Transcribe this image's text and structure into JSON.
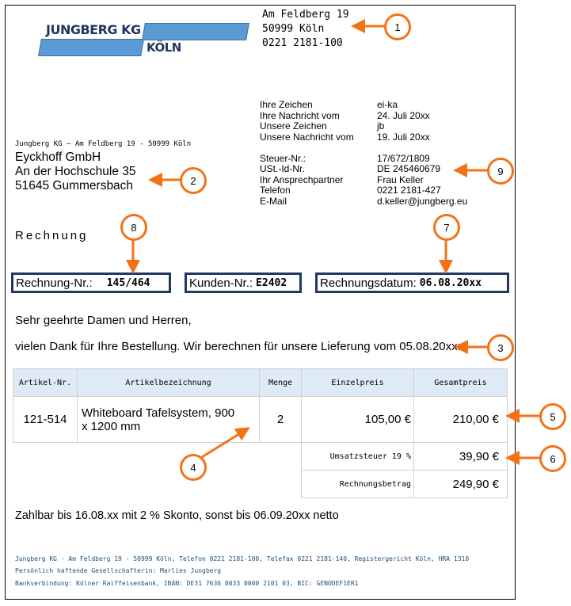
{
  "logo": {
    "company": "JUNGBERG KG",
    "city": "KÖLN",
    "color": "#5b9bd5"
  },
  "sender": {
    "street": "Am Feldberg 19",
    "city": "50999 Köln",
    "phone": "0221 2181-100"
  },
  "return_address": "Jungberg KG – Am Feldberg 19 - 50999 Köln",
  "recipient": {
    "name": "Eyckhoff GmbH",
    "street": "An der Hochschule 35",
    "city": "51645 Gummersbach"
  },
  "info": [
    {
      "label": "Ihre Zeichen",
      "value": "ei-ka"
    },
    {
      "label": "Ihre Nachricht vom",
      "value": "24. Juli 20xx"
    },
    {
      "label": "Unsere Zeichen",
      "value": "jb"
    },
    {
      "label": "Unsere Nachricht vom",
      "value": "19. Juli 20xx"
    },
    {
      "label": "Steuer-Nr.:",
      "value": "17/672/1809"
    },
    {
      "label": "USt.-Id-Nr.",
      "value": "DE 245460679"
    },
    {
      "label": "Ihr Ansprechpartner",
      "value": "Frau Keller"
    },
    {
      "label": "Telefon",
      "value": "0221 2181-427"
    },
    {
      "label": "E-Mail",
      "value": "d.keller@jungberg.eu"
    }
  ],
  "title": "Rechnung",
  "boxes": {
    "invoice_label": "Rechnung-Nr.:",
    "invoice_value": "145/464",
    "customer_label": "Kunden-Nr.:",
    "customer_value": "E2402",
    "date_label": "Rechnungsdatum:",
    "date_value": "06.08.20xx"
  },
  "salutation": "Sehr geehrte Damen und Herren,",
  "intro": "vielen Dank für Ihre Bestellung. Wir berechnen für unsere Lieferung vom 05.08.20xx:",
  "table": {
    "headers": [
      "Artikel-Nr.",
      "Artikelbezeichnung",
      "Menge",
      "Einzelpreis",
      "Gesamtpreis"
    ],
    "row": {
      "nr": "121-514",
      "desc": "Whiteboard Tafelsystem, 900 x 1200 mm",
      "qty": "2",
      "unit": "105,00 €",
      "total": "210,00 €"
    },
    "tax_label": "Umsatzsteuer 19 %",
    "tax_value": "39,90 €",
    "sum_label": "Rechnungsbetrag",
    "sum_value": "249,90 €"
  },
  "payment": "Zahlbar bis 16.08.xx mit 2 % Skonto, sonst bis 06.09.20xx netto",
  "footer": [
    "Jungberg KG - Am Feldberg 19 - 50999 Köln, Telefon 0221 2181-100, Telefax 0221 2181-140, Registergericht Köln, HRA 1310",
    "Persönlich haftende Gesellschafterin: Marlies Jungberg",
    "Bankverbindung: Kölner Raiffeisenbank, IBAN: DE31 7636 0033 0000 2101 03, BIC: GENODEF1ER1"
  ],
  "annotations": [
    "1",
    "2",
    "3",
    "4",
    "5",
    "6",
    "7",
    "8",
    "9"
  ],
  "annotation_color": "#f47216"
}
